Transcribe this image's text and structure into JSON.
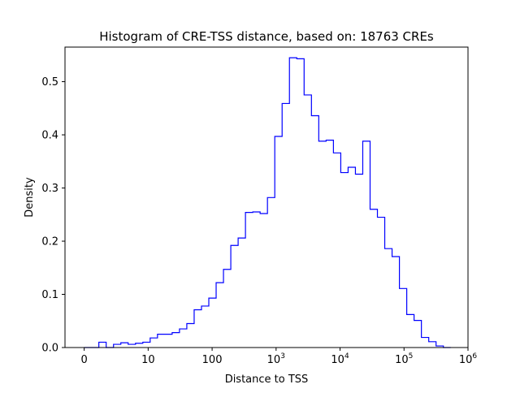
{
  "chart_data": {
    "type": "histogram-step",
    "title": "Histogram of CRE-TSS distance, based on: 18763 CREs",
    "xlabel": "Distance to TSS",
    "ylabel": "Density",
    "x_scale": "log10(distance+1)",
    "xlim": [
      -0.3,
      6.0
    ],
    "ylim": [
      0,
      0.565
    ],
    "x_ticks": [
      {
        "value": 0,
        "label": "0"
      },
      {
        "value": 1,
        "label": "10"
      },
      {
        "value": 2,
        "label": "100"
      },
      {
        "value": 3,
        "label": "10",
        "sup": "3"
      },
      {
        "value": 4,
        "label": "10",
        "sup": "4"
      },
      {
        "value": 5,
        "label": "10",
        "sup": "5"
      },
      {
        "value": 6,
        "label": "10",
        "sup": "6"
      }
    ],
    "y_ticks": [
      {
        "value": 0.0,
        "label": "0.0"
      },
      {
        "value": 0.1,
        "label": "0.1"
      },
      {
        "value": 0.2,
        "label": "0.2"
      },
      {
        "value": 0.3,
        "label": "0.3"
      },
      {
        "value": 0.4,
        "label": "0.4"
      },
      {
        "value": 0.5,
        "label": "0.5"
      }
    ],
    "series": [
      {
        "bin_width": 0.1146,
        "bin_start": 0.0,
        "values": [
          0.0,
          0.0,
          0.01,
          0.0,
          0.006,
          0.009,
          0.006,
          0.008,
          0.01,
          0.018,
          0.025,
          0.025,
          0.028,
          0.035,
          0.045,
          0.071,
          0.078,
          0.093,
          0.122,
          0.147,
          0.192,
          0.206,
          0.254,
          0.255,
          0.252,
          0.282,
          0.397,
          0.459,
          0.545,
          0.543,
          0.475,
          0.436,
          0.388,
          0.39,
          0.366,
          0.329,
          0.339,
          0.326,
          0.388,
          0.26,
          0.245,
          0.186,
          0.171,
          0.111,
          0.062,
          0.051,
          0.019,
          0.011,
          0.003,
          0.0
        ],
        "color": "#0000ff"
      }
    ]
  }
}
